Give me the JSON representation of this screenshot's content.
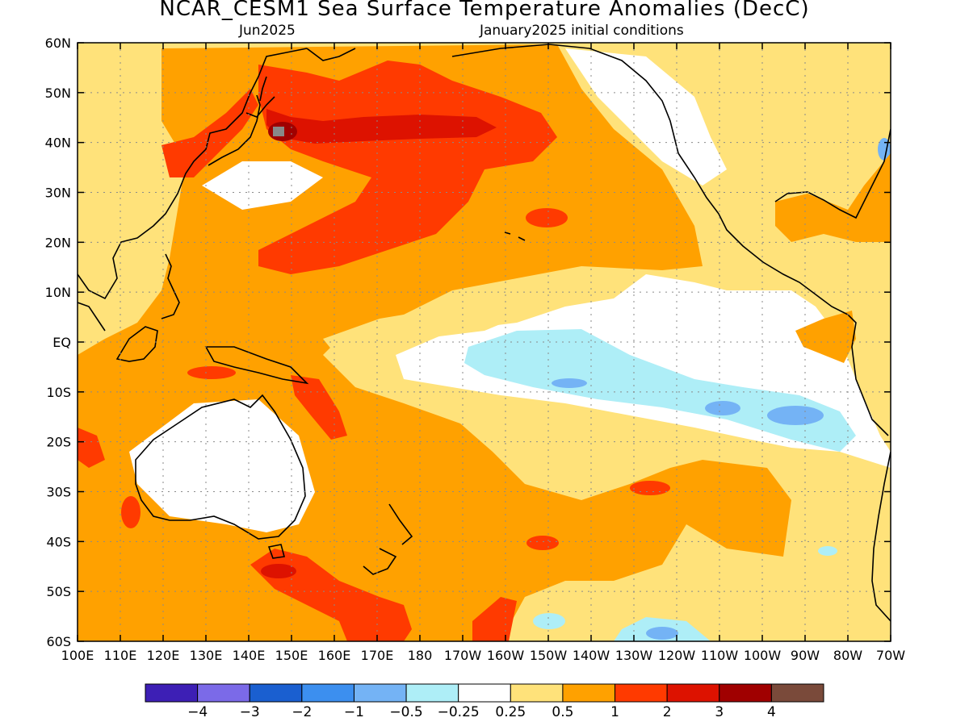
{
  "title": "NCAR_CESM1 Sea Surface Temperature Anomalies (DecC)",
  "subtitle_left": "Jun2025",
  "subtitle_right": "January2025 initial conditions",
  "lat_labels": [
    "60N",
    "50N",
    "40N",
    "30N",
    "20N",
    "10N",
    "EQ",
    "10S",
    "20S",
    "30S",
    "40S",
    "50S",
    "60S"
  ],
  "lon_labels": [
    "100E",
    "110E",
    "120E",
    "130E",
    "140E",
    "150E",
    "160E",
    "170E",
    "180",
    "170W",
    "160W",
    "150W",
    "140W",
    "130W",
    "120W",
    "110W",
    "100W",
    "90W",
    "80W",
    "70W"
  ],
  "colorbar": {
    "colors": [
      "#3d1fb5",
      "#7b6ae8",
      "#1a5fd0",
      "#3c8fef",
      "#74b3f5",
      "#aeeef7",
      "#ffffff",
      "#ffe27a",
      "#ffa100",
      "#ff3a00",
      "#dd1200",
      "#a00000",
      "#7a4a3a"
    ],
    "labels": [
      "−4",
      "−3",
      "−2",
      "−1",
      "−0.5",
      "−0.25",
      "0.25",
      "0.5",
      "1",
      "2",
      "3",
      "4"
    ]
  },
  "anomaly_palette": {
    "cold_medium": "#74b3f5",
    "cold_light": "#aeeef7",
    "neutral": "#ffffff",
    "warm_light": "#ffe27a",
    "warm_medium": "#ffa100",
    "warm_strong": "#ff3a00",
    "warm_very_strong": "#dd1200",
    "warm_extreme": "#a00000",
    "missing": "#888888"
  }
}
